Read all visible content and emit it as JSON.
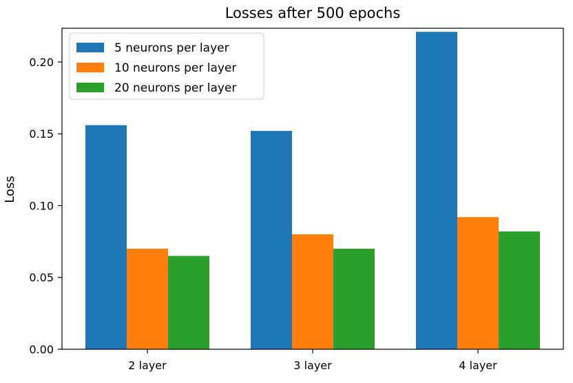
{
  "chart_data": {
    "type": "bar",
    "title": "Losses after 500 epochs",
    "xlabel": "",
    "ylabel": "Loss",
    "categories": [
      "2 layer",
      "3 layer",
      "4 layer"
    ],
    "series": [
      {
        "name": "5 neurons per layer",
        "color": "#1f77b4",
        "values": [
          0.156,
          0.152,
          0.221
        ]
      },
      {
        "name": "10 neurons per layer",
        "color": "#ff7f0e",
        "values": [
          0.07,
          0.08,
          0.092
        ]
      },
      {
        "name": "20 neurons per layer",
        "color": "#2ca02c",
        "values": [
          0.065,
          0.07,
          0.082
        ]
      }
    ],
    "ylim": [
      0,
      0.2235
    ],
    "yticks": [
      "0.00",
      "0.05",
      "0.10",
      "0.15",
      "0.20"
    ],
    "grid": false,
    "legend_position": "top-left"
  }
}
